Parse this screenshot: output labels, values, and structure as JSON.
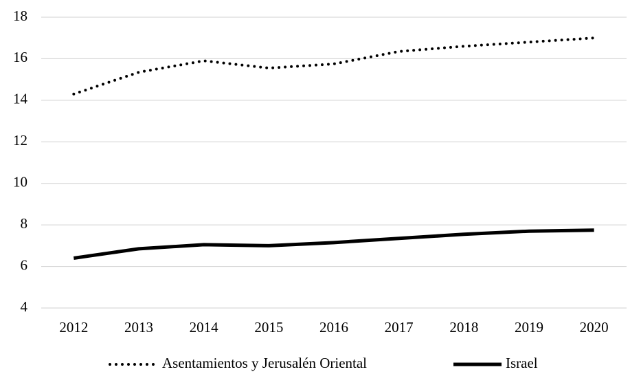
{
  "chart_data": {
    "type": "line",
    "categories": [
      "2012",
      "2013",
      "2014",
      "2015",
      "2016",
      "2017",
      "2018",
      "2019",
      "2020"
    ],
    "series": [
      {
        "name": "Asentamientos y Jerusalén Oriental",
        "color": "#000000",
        "style": "dotted",
        "values": [
          14.3,
          15.35,
          15.9,
          15.55,
          15.75,
          16.35,
          16.6,
          16.8,
          17.0
        ]
      },
      {
        "name": "Israel",
        "color": "#000000",
        "style": "solid",
        "values": [
          6.4,
          6.85,
          7.05,
          7.0,
          7.15,
          7.35,
          7.55,
          7.7,
          7.75
        ]
      }
    ],
    "ylim": [
      4,
      18
    ],
    "yticks": [
      4,
      6,
      8,
      10,
      12,
      14,
      16,
      18
    ],
    "grid": true,
    "legend": "bottom"
  }
}
